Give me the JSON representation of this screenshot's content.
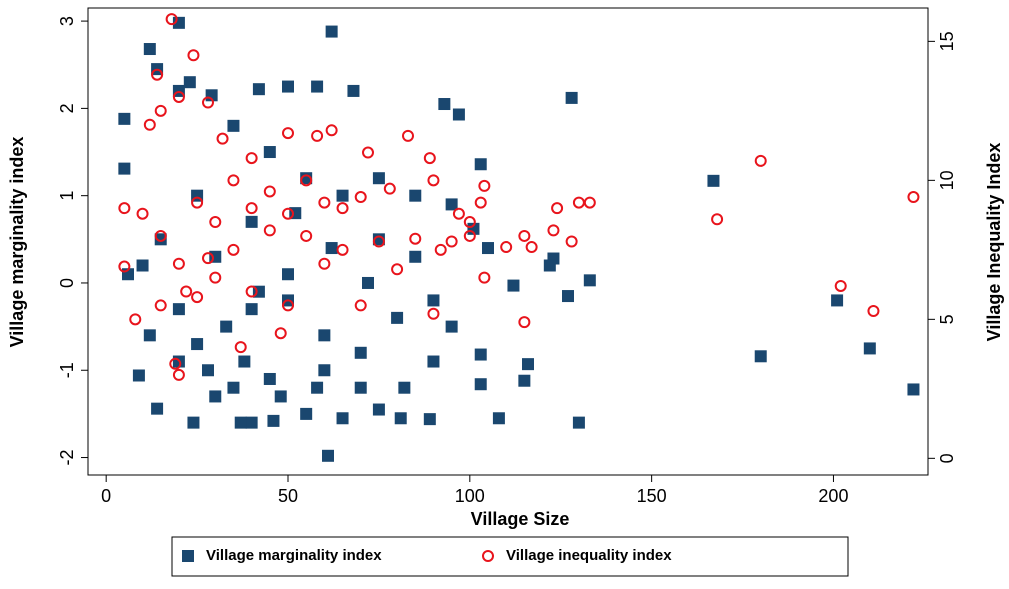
{
  "chart_data": {
    "type": "scatter",
    "x_label": "Village Size",
    "y_label": "Village marginality index",
    "y2_label": "Village Inequality Index",
    "xlim": [
      -5,
      226
    ],
    "xticks": [
      0,
      50,
      100,
      150,
      200
    ],
    "ylim": [
      -2.2,
      3.15
    ],
    "yticks": [
      -2,
      -1,
      0,
      1,
      2,
      3
    ],
    "y2lim": [
      -0.6,
      16.2
    ],
    "y2ticks": [
      0,
      5,
      10,
      15
    ],
    "legend": "bottom",
    "series": [
      {
        "name": "Village marginality index",
        "color": "#1a476f",
        "marker": "square",
        "x": [
          62,
          20,
          12,
          14,
          167,
          180,
          201,
          210,
          222,
          130,
          61,
          128,
          133,
          127,
          123,
          122,
          112,
          108,
          116,
          115,
          103,
          103,
          103,
          105,
          101,
          97,
          93,
          89,
          81,
          68,
          58,
          50,
          42,
          23,
          20,
          29,
          5,
          5,
          6,
          9,
          14,
          24,
          40,
          37,
          46,
          55,
          65,
          75,
          30,
          35,
          45,
          20,
          25,
          33,
          40,
          50,
          60,
          70,
          80,
          90,
          95,
          85,
          75,
          65,
          55,
          45,
          35,
          25,
          15,
          10,
          30,
          40,
          50,
          60,
          70,
          20,
          12,
          28,
          38,
          48,
          58,
          75,
          85,
          95,
          90,
          82,
          72,
          62,
          52,
          42
        ],
        "values": [
          2.88,
          2.98,
          2.68,
          2.45,
          1.17,
          -0.84,
          -0.2,
          -0.75,
          -1.22,
          -1.6,
          -1.98,
          2.12,
          0.03,
          -0.15,
          0.28,
          0.2,
          -0.03,
          -1.55,
          -0.93,
          -1.12,
          -1.16,
          -0.82,
          1.36,
          0.4,
          0.62,
          1.93,
          2.05,
          -1.56,
          -1.55,
          2.2,
          2.25,
          2.25,
          2.22,
          2.3,
          2.2,
          2.15,
          1.88,
          1.31,
          0.1,
          -1.06,
          -1.44,
          -1.6,
          -1.6,
          -1.6,
          -1.58,
          -1.5,
          -1.55,
          -1.45,
          -1.3,
          -1.2,
          -1.1,
          -0.9,
          -0.7,
          -0.5,
          -0.3,
          -0.2,
          -0.6,
          -0.8,
          -0.4,
          -0.9,
          -0.5,
          0.3,
          0.5,
          1.0,
          1.2,
          1.5,
          1.8,
          1.0,
          0.5,
          0.2,
          0.3,
          0.7,
          0.1,
          -1.0,
          -1.2,
          -0.3,
          -0.6,
          -1.0,
          -0.9,
          -1.3,
          -1.2,
          1.2,
          1.0,
          0.9,
          -0.2,
          -1.2,
          0.0,
          0.4,
          0.8,
          -0.1
        ]
      },
      {
        "name": "Village inequality index",
        "color": "#e8141c",
        "marker": "circle",
        "axis": "y2",
        "x": [
          18,
          24,
          14,
          168,
          180,
          202,
          211,
          222,
          115,
          90,
          104,
          103,
          104,
          97,
          95,
          128,
          123,
          124,
          130,
          133,
          117,
          110,
          100,
          20,
          19,
          5,
          5,
          8,
          37,
          48,
          62,
          58,
          50,
          72,
          83,
          89,
          90,
          78,
          70,
          60,
          50,
          40,
          30,
          25,
          35,
          45,
          55,
          65,
          75,
          85,
          20,
          15,
          10,
          12,
          15,
          20,
          28,
          32,
          40,
          28,
          22,
          30,
          40,
          50,
          60,
          70,
          80,
          15,
          25,
          35,
          45,
          55,
          65,
          92,
          100,
          115
        ],
        "values": [
          15.8,
          14.5,
          13.8,
          8.6,
          10.7,
          6.2,
          5.3,
          9.4,
          4.9,
          5.2,
          6.5,
          9.2,
          9.8,
          8.8,
          7.8,
          7.8,
          8.2,
          9.0,
          9.2,
          9.2,
          7.6,
          7.6,
          8.0,
          3.0,
          3.4,
          6.9,
          9.0,
          5.0,
          4.0,
          4.5,
          11.8,
          11.6,
          11.7,
          11.0,
          11.6,
          10.8,
          10.0,
          9.7,
          9.4,
          9.2,
          8.8,
          9.0,
          8.5,
          9.2,
          10.0,
          9.6,
          8.0,
          7.5,
          7.8,
          7.9,
          7.0,
          8.0,
          8.8,
          12.0,
          12.5,
          13.0,
          12.8,
          11.5,
          10.8,
          7.2,
          6.0,
          6.5,
          6.0,
          5.5,
          7.0,
          5.5,
          6.8,
          5.5,
          5.8,
          7.5,
          8.2,
          10.0,
          9.0,
          7.5,
          8.5,
          8.0
        ]
      }
    ]
  }
}
